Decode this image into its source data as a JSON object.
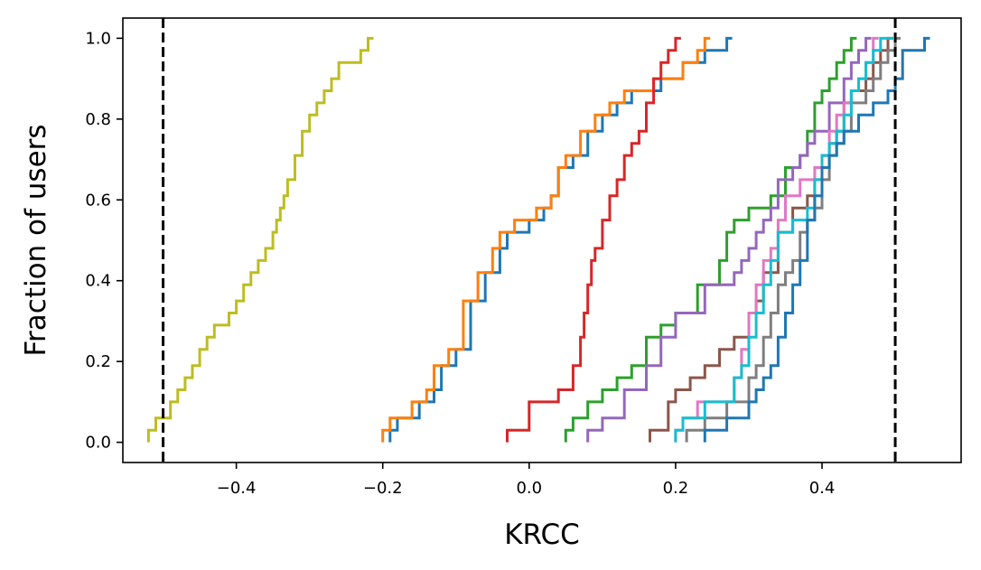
{
  "chart_data": {
    "type": "line",
    "xlabel": "KRCC",
    "ylabel": "Fraction of users",
    "xlim": [
      -0.555,
      0.59
    ],
    "ylim": [
      -0.05,
      1.05
    ],
    "x_ticks": [
      -0.4,
      -0.2,
      0.0,
      0.2,
      0.4
    ],
    "x_tick_labels": [
      "−0.4",
      "−0.2",
      "0.0",
      "0.2",
      "0.4"
    ],
    "y_ticks": [
      0.0,
      0.2,
      0.4,
      0.6,
      0.8,
      1.0
    ],
    "y_tick_labels": [
      "0.0",
      "0.2",
      "0.4",
      "0.6",
      "0.8",
      "1.0"
    ],
    "grid": false,
    "legend": "none",
    "reference_lines": [
      {
        "x": -0.5,
        "style": "dashed",
        "color": "#000000"
      },
      {
        "x": 0.5,
        "style": "dashed",
        "color": "#000000"
      }
    ],
    "series": [
      {
        "color": "#bcbd22",
        "x": [
          -0.52,
          -0.51,
          -0.49,
          -0.48,
          -0.47,
          -0.46,
          -0.45,
          -0.44,
          -0.43,
          -0.41,
          -0.4,
          -0.39,
          -0.38,
          -0.37,
          -0.36,
          -0.35,
          -0.345,
          -0.34,
          -0.335,
          -0.33,
          -0.32,
          -0.31,
          -0.3,
          -0.29,
          -0.28,
          -0.27,
          -0.26,
          -0.23,
          -0.22
        ],
        "y": [
          0.03,
          0.06,
          0.1,
          0.13,
          0.16,
          0.19,
          0.23,
          0.26,
          0.29,
          0.32,
          0.35,
          0.39,
          0.42,
          0.45,
          0.48,
          0.52,
          0.55,
          0.58,
          0.61,
          0.65,
          0.71,
          0.77,
          0.81,
          0.84,
          0.87,
          0.9,
          0.94,
          0.97,
          1.0
        ]
      },
      {
        "color": "#1f77b4",
        "x": [
          -0.19,
          -0.18,
          -0.15,
          -0.13,
          -0.12,
          -0.1,
          -0.08,
          -0.06,
          -0.04,
          -0.03,
          0.0,
          0.02,
          0.03,
          0.04,
          0.06,
          0.08,
          0.1,
          0.12,
          0.14,
          0.18,
          0.21,
          0.24,
          0.27
        ],
        "y": [
          0.03,
          0.06,
          0.1,
          0.13,
          0.19,
          0.23,
          0.35,
          0.42,
          0.48,
          0.52,
          0.55,
          0.58,
          0.61,
          0.68,
          0.71,
          0.77,
          0.81,
          0.84,
          0.87,
          0.9,
          0.94,
          0.97,
          1.0
        ]
      },
      {
        "color": "#ff7f0e",
        "x": [
          -0.2,
          -0.19,
          -0.16,
          -0.14,
          -0.13,
          -0.11,
          -0.09,
          -0.07,
          -0.05,
          -0.04,
          -0.02,
          0.01,
          0.03,
          0.04,
          0.05,
          0.07,
          0.09,
          0.11,
          0.13,
          0.17,
          0.21,
          0.23,
          0.24
        ],
        "y": [
          0.03,
          0.06,
          0.1,
          0.13,
          0.19,
          0.23,
          0.35,
          0.42,
          0.48,
          0.52,
          0.55,
          0.58,
          0.61,
          0.68,
          0.71,
          0.77,
          0.81,
          0.84,
          0.87,
          0.9,
          0.94,
          0.97,
          1.0
        ]
      },
      {
        "color": "#d62728",
        "x": [
          -0.03,
          0.0,
          0.04,
          0.06,
          0.07,
          0.075,
          0.08,
          0.085,
          0.09,
          0.1,
          0.11,
          0.12,
          0.13,
          0.14,
          0.15,
          0.16,
          0.17,
          0.18,
          0.19,
          0.2
        ],
        "y": [
          0.03,
          0.1,
          0.13,
          0.19,
          0.26,
          0.32,
          0.39,
          0.45,
          0.48,
          0.55,
          0.61,
          0.65,
          0.71,
          0.74,
          0.77,
          0.84,
          0.9,
          0.94,
          0.97,
          1.0
        ]
      },
      {
        "color": "#2ca02c",
        "x": [
          0.05,
          0.06,
          0.08,
          0.1,
          0.12,
          0.14,
          0.16,
          0.18,
          0.2,
          0.23,
          0.26,
          0.27,
          0.28,
          0.3,
          0.33,
          0.35,
          0.37,
          0.38,
          0.39,
          0.4,
          0.41,
          0.42,
          0.43,
          0.44
        ],
        "y": [
          0.03,
          0.06,
          0.1,
          0.13,
          0.16,
          0.19,
          0.26,
          0.29,
          0.32,
          0.39,
          0.45,
          0.52,
          0.55,
          0.58,
          0.61,
          0.68,
          0.71,
          0.77,
          0.84,
          0.87,
          0.9,
          0.94,
          0.97,
          1.0
        ]
      },
      {
        "color": "#9467bd",
        "x": [
          0.08,
          0.1,
          0.13,
          0.16,
          0.18,
          0.2,
          0.24,
          0.28,
          0.29,
          0.3,
          0.31,
          0.32,
          0.33,
          0.34,
          0.36,
          0.37,
          0.38,
          0.39,
          0.41,
          0.43,
          0.44,
          0.45,
          0.46
        ],
        "y": [
          0.03,
          0.06,
          0.13,
          0.19,
          0.26,
          0.32,
          0.39,
          0.42,
          0.45,
          0.48,
          0.52,
          0.55,
          0.58,
          0.65,
          0.68,
          0.71,
          0.74,
          0.77,
          0.84,
          0.9,
          0.94,
          0.97,
          1.0
        ]
      },
      {
        "color": "#8c564b",
        "x": [
          0.165,
          0.19,
          0.2,
          0.22,
          0.24,
          0.26,
          0.28,
          0.3,
          0.31,
          0.32,
          0.34,
          0.36,
          0.38,
          0.39,
          0.4,
          0.41,
          0.42,
          0.43,
          0.44,
          0.46,
          0.47,
          0.48,
          0.49
        ],
        "y": [
          0.03,
          0.1,
          0.13,
          0.16,
          0.19,
          0.23,
          0.26,
          0.32,
          0.35,
          0.42,
          0.52,
          0.58,
          0.61,
          0.65,
          0.71,
          0.74,
          0.77,
          0.84,
          0.87,
          0.9,
          0.94,
          0.97,
          1.0
        ]
      },
      {
        "color": "#e377c2",
        "x": [
          0.2,
          0.21,
          0.23,
          0.28,
          0.29,
          0.3,
          0.31,
          0.32,
          0.33,
          0.34,
          0.35,
          0.37,
          0.39,
          0.4,
          0.41,
          0.42,
          0.43,
          0.44,
          0.45,
          0.46,
          0.47
        ],
        "y": [
          0.03,
          0.06,
          0.1,
          0.16,
          0.23,
          0.32,
          0.39,
          0.45,
          0.48,
          0.55,
          0.61,
          0.65,
          0.68,
          0.71,
          0.77,
          0.81,
          0.84,
          0.87,
          0.9,
          0.94,
          1.0
        ]
      },
      {
        "color": "#7f7f7f",
        "x": [
          0.215,
          0.24,
          0.27,
          0.3,
          0.31,
          0.32,
          0.33,
          0.34,
          0.35,
          0.36,
          0.37,
          0.38,
          0.39,
          0.4,
          0.41,
          0.42,
          0.43,
          0.44,
          0.46,
          0.47,
          0.48,
          0.49,
          0.5
        ],
        "y": [
          0.03,
          0.06,
          0.1,
          0.16,
          0.19,
          0.26,
          0.32,
          0.39,
          0.42,
          0.45,
          0.52,
          0.55,
          0.58,
          0.65,
          0.71,
          0.74,
          0.77,
          0.84,
          0.87,
          0.9,
          0.94,
          0.97,
          1.0
        ]
      },
      {
        "color": "#17becf",
        "x": [
          0.2,
          0.21,
          0.24,
          0.28,
          0.29,
          0.3,
          0.31,
          0.32,
          0.33,
          0.34,
          0.36,
          0.38,
          0.39,
          0.4,
          0.41,
          0.42,
          0.43,
          0.44,
          0.45,
          0.46,
          0.47,
          0.48,
          0.49
        ],
        "y": [
          0.03,
          0.06,
          0.1,
          0.16,
          0.19,
          0.26,
          0.32,
          0.39,
          0.45,
          0.52,
          0.55,
          0.58,
          0.65,
          0.71,
          0.74,
          0.77,
          0.81,
          0.87,
          0.9,
          0.94,
          0.97,
          1.0,
          1.0
        ]
      },
      {
        "color": "#1f77b4",
        "x": [
          0.24,
          0.27,
          0.3,
          0.31,
          0.32,
          0.33,
          0.34,
          0.35,
          0.36,
          0.37,
          0.38,
          0.39,
          0.4,
          0.41,
          0.42,
          0.43,
          0.45,
          0.47,
          0.49,
          0.5,
          0.51,
          0.54
        ],
        "y": [
          0.03,
          0.06,
          0.1,
          0.13,
          0.16,
          0.19,
          0.26,
          0.32,
          0.39,
          0.45,
          0.55,
          0.61,
          0.68,
          0.71,
          0.74,
          0.77,
          0.81,
          0.84,
          0.87,
          0.9,
          0.97,
          1.0
        ]
      }
    ]
  }
}
